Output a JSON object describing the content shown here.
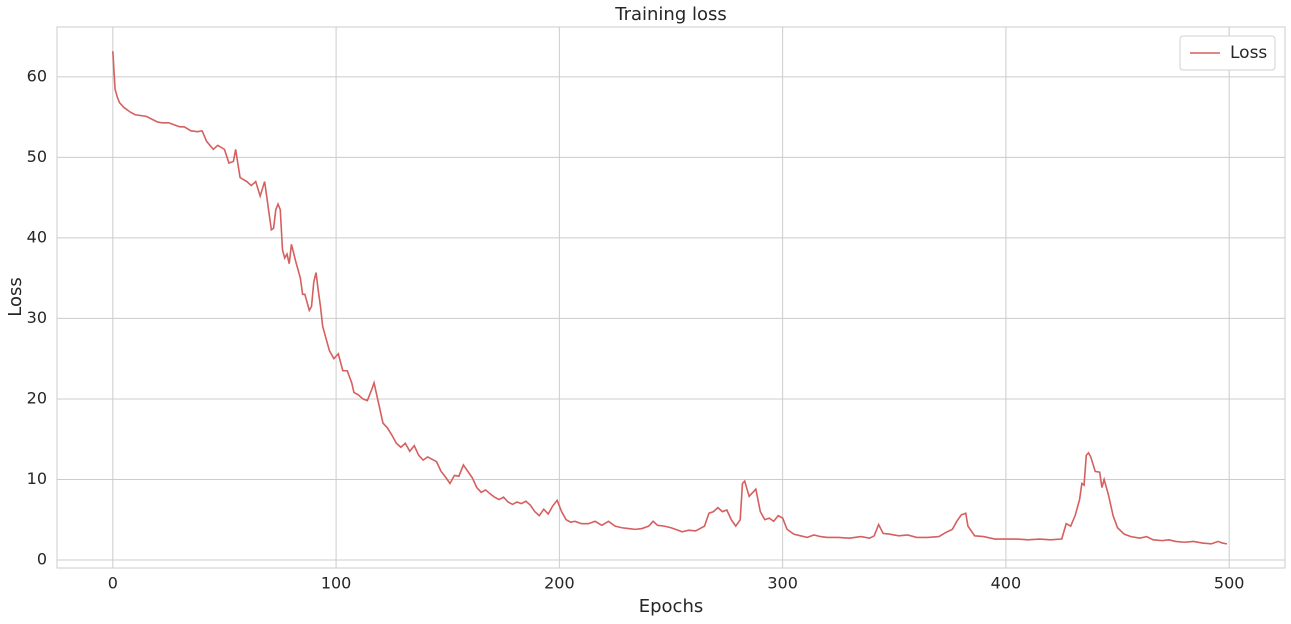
{
  "chart_data": {
    "type": "line",
    "title": "Training loss",
    "x_label": "Epochs",
    "y_label": "Loss",
    "x": [
      0,
      1,
      2,
      3,
      5,
      8,
      10,
      15,
      20,
      22,
      25,
      28,
      30,
      32,
      35,
      38,
      40,
      42,
      45,
      47,
      50,
      52,
      54,
      55,
      57,
      60,
      62,
      64,
      66,
      68,
      70,
      71,
      72,
      73,
      74,
      75,
      76,
      77,
      78,
      79,
      80,
      82,
      84,
      85,
      86,
      88,
      89,
      90,
      91,
      92,
      93,
      94,
      96,
      97,
      99,
      101,
      103,
      105,
      107,
      108,
      110,
      112,
      114,
      116,
      117,
      119,
      121,
      123,
      125,
      127,
      129,
      131,
      133,
      135,
      137,
      139,
      141,
      143,
      145,
      147,
      149,
      151,
      153,
      155,
      157,
      159,
      161,
      163,
      165,
      167,
      169,
      171,
      173,
      175,
      177,
      179,
      181,
      183,
      185,
      187,
      189,
      191,
      193,
      195,
      197,
      199,
      201,
      203,
      205,
      207,
      210,
      213,
      216,
      219,
      222,
      225,
      228,
      231,
      234,
      237,
      240,
      242,
      244,
      247,
      250,
      253,
      255,
      258,
      261,
      263,
      265,
      267,
      269,
      271,
      273,
      275,
      277,
      279,
      281,
      282,
      283,
      285,
      287,
      288,
      290,
      292,
      294,
      296,
      298,
      300,
      302,
      305,
      308,
      311,
      314,
      317,
      320,
      325,
      330,
      335,
      339,
      341,
      343,
      345,
      348,
      352,
      356,
      360,
      365,
      370,
      373,
      376,
      378,
      380,
      382,
      383,
      386,
      390,
      395,
      400,
      405,
      410,
      415,
      420,
      425,
      427,
      429,
      431,
      433,
      434,
      435,
      436,
      437,
      438,
      440,
      442,
      443,
      444,
      446,
      448,
      450,
      453,
      456,
      460,
      463,
      466,
      470,
      473,
      476,
      480,
      484,
      488,
      492,
      495,
      497,
      499
    ],
    "series": [
      {
        "name": "Loss",
        "color": "#d65f5f",
        "values": [
          63.2,
          58.5,
          57.5,
          56.8,
          56.2,
          55.6,
          55.3,
          55.1,
          54.4,
          54.3,
          54.3,
          54.0,
          53.8,
          53.8,
          53.3,
          53.2,
          53.3,
          52.0,
          51.0,
          51.5,
          51.0,
          49.3,
          49.5,
          51.0,
          47.5,
          47.0,
          46.5,
          47.0,
          45.2,
          47.0,
          43.0,
          41.0,
          41.2,
          43.5,
          44.2,
          43.5,
          38.5,
          37.5,
          38.0,
          36.8,
          39.2,
          37.0,
          35.0,
          33.0,
          33.0,
          31.0,
          31.5,
          34.5,
          35.7,
          33.5,
          31.5,
          29.0,
          27.0,
          26.0,
          25.0,
          25.6,
          23.5,
          23.5,
          22.0,
          20.8,
          20.5,
          20.0,
          19.8,
          21.2,
          22.0,
          19.5,
          17.0,
          16.4,
          15.5,
          14.5,
          14.0,
          14.5,
          13.5,
          14.2,
          13.0,
          12.4,
          12.8,
          12.5,
          12.2,
          11.0,
          10.3,
          9.5,
          10.5,
          10.4,
          11.8,
          11.0,
          10.2,
          9.0,
          8.4,
          8.7,
          8.2,
          7.8,
          7.5,
          7.8,
          7.2,
          6.9,
          7.2,
          7.0,
          7.3,
          6.8,
          6.0,
          5.5,
          6.3,
          5.7,
          6.7,
          7.4,
          6.0,
          5.0,
          4.7,
          4.8,
          4.5,
          4.5,
          4.8,
          4.3,
          4.8,
          4.2,
          4.0,
          3.9,
          3.8,
          3.9,
          4.2,
          4.8,
          4.3,
          4.2,
          4.0,
          3.7,
          3.5,
          3.7,
          3.6,
          3.9,
          4.2,
          5.8,
          6.0,
          6.5,
          6.0,
          6.2,
          5.0,
          4.2,
          5.0,
          9.5,
          9.8,
          7.9,
          8.5,
          8.8,
          6.0,
          5.0,
          5.2,
          4.8,
          5.5,
          5.2,
          3.8,
          3.2,
          3.0,
          2.8,
          3.1,
          2.9,
          2.8,
          2.8,
          2.7,
          2.9,
          2.7,
          3.0,
          4.4,
          3.3,
          3.2,
          3.0,
          3.1,
          2.8,
          2.8,
          2.9,
          3.4,
          3.8,
          4.8,
          5.6,
          5.8,
          4.2,
          3.0,
          2.9,
          2.6,
          2.6,
          2.6,
          2.5,
          2.6,
          2.5,
          2.6,
          4.5,
          4.2,
          5.5,
          7.5,
          9.5,
          9.3,
          13.0,
          13.3,
          12.8,
          11.0,
          10.9,
          9.0,
          10.0,
          8.0,
          5.5,
          4.0,
          3.2,
          2.9,
          2.7,
          2.9,
          2.5,
          2.4,
          2.5,
          2.3,
          2.2,
          2.3,
          2.1,
          2.0,
          2.3,
          2.1,
          2.0
        ]
      }
    ],
    "xlim": [
      -25,
      525
    ],
    "xticks": [
      0,
      100,
      200,
      300,
      400,
      500
    ],
    "ylim": [
      -1,
      66.2
    ],
    "yticks": [
      0,
      10,
      20,
      30,
      40,
      50,
      60
    ],
    "grid": true,
    "legend": "upper right"
  }
}
